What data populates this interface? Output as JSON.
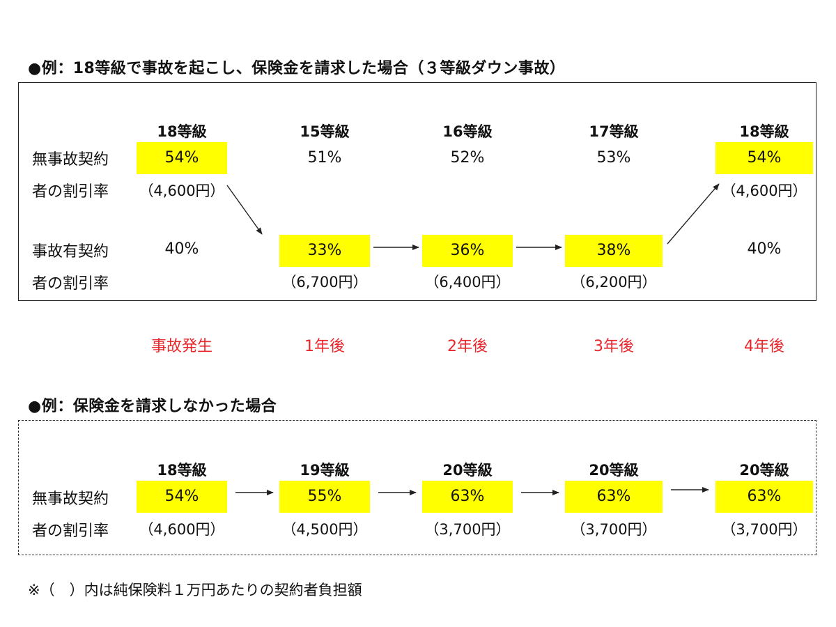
{
  "example1": {
    "title": "●例：18等級で事故を起こし、保険金を請求した場合（３等級ダウン事故）",
    "row1_label": [
      "無事故契約",
      "者の割引率"
    ],
    "row2_label": [
      "事故有契約",
      "者の割引率"
    ],
    "columns": [
      {
        "grade": "18等級",
        "no_accident": "54%",
        "no_accident_note": "（4,600円）",
        "accident": "40%",
        "accident_note": ""
      },
      {
        "grade": "15等級",
        "no_accident": "51%",
        "no_accident_note": "",
        "accident": "33%",
        "accident_note": "（6,700円）"
      },
      {
        "grade": "16等級",
        "no_accident": "52%",
        "no_accident_note": "",
        "accident": "36%",
        "accident_note": "（6,400円）"
      },
      {
        "grade": "17等級",
        "no_accident": "53%",
        "no_accident_note": "",
        "accident": "38%",
        "accident_note": "（6,200円）"
      },
      {
        "grade": "18等級",
        "no_accident": "54%",
        "no_accident_note": "（4,600円）",
        "accident": "40%",
        "accident_note": ""
      }
    ],
    "timeline": [
      "事故発生",
      "1年後",
      "2年後",
      "3年後",
      "4年後"
    ]
  },
  "example2": {
    "title": "●例：保険金を請求しなかった場合",
    "row_label": [
      "無事故契約",
      "者の割引率"
    ],
    "columns": [
      {
        "grade": "18等級",
        "rate": "54%",
        "note": "（4,600円）"
      },
      {
        "grade": "19等級",
        "rate": "55%",
        "note": "（4,500円）"
      },
      {
        "grade": "20等級",
        "rate": "63%",
        "note": "（3,700円）"
      },
      {
        "grade": "20等級",
        "rate": "63%",
        "note": "（3,700円）"
      },
      {
        "grade": "20等級",
        "rate": "63%",
        "note": "（3,700円）"
      }
    ]
  },
  "footnote": "※（　）内は純保険料１万円あたりの契約者負担額",
  "colors": {
    "highlight": "#ffff00",
    "timeline_text": "#e8262b",
    "text": "#111111"
  }
}
